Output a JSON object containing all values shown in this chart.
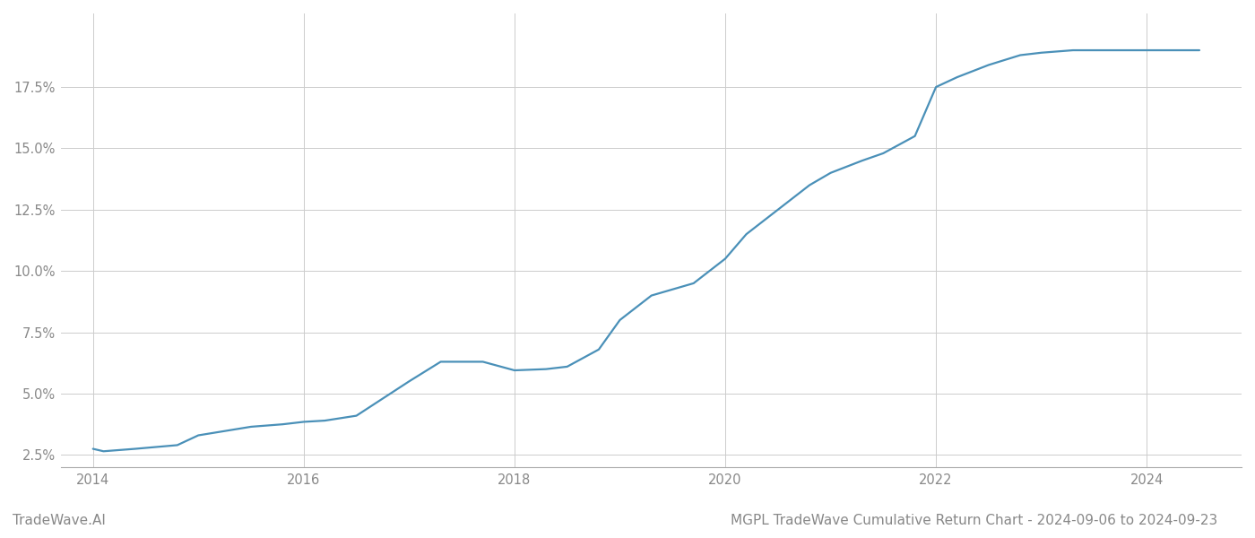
{
  "title": "MGPL TradeWave Cumulative Return Chart - 2024-09-06 to 2024-09-23",
  "watermark": "TradeWave.AI",
  "line_color": "#4a90b8",
  "background_color": "#ffffff",
  "grid_color": "#cccccc",
  "x_values": [
    2014.0,
    2014.1,
    2014.4,
    2014.8,
    2015.0,
    2015.5,
    2015.8,
    2016.0,
    2016.2,
    2016.5,
    2017.0,
    2017.3,
    2017.7,
    2018.0,
    2018.3,
    2018.5,
    2018.8,
    2019.0,
    2019.3,
    2019.7,
    2020.0,
    2020.2,
    2020.5,
    2020.8,
    2021.0,
    2021.3,
    2021.5,
    2021.8,
    2022.0,
    2022.2,
    2022.5,
    2022.8,
    2023.0,
    2023.3,
    2023.7,
    2024.0,
    2024.5
  ],
  "y_values": [
    2.75,
    2.65,
    2.75,
    2.9,
    3.3,
    3.65,
    3.75,
    3.85,
    3.9,
    4.1,
    5.5,
    6.3,
    6.3,
    5.95,
    6.0,
    6.1,
    6.8,
    8.0,
    9.0,
    9.5,
    10.5,
    11.5,
    12.5,
    13.5,
    14.0,
    14.5,
    14.8,
    15.5,
    17.5,
    17.9,
    18.4,
    18.8,
    18.9,
    19.0,
    19.0,
    19.0,
    19.0
  ],
  "xlim": [
    2013.7,
    2024.9
  ],
  "ylim": [
    2.0,
    20.5
  ],
  "yticks": [
    2.5,
    5.0,
    7.5,
    10.0,
    12.5,
    15.0,
    17.5
  ],
  "xticks": [
    2014,
    2016,
    2018,
    2020,
    2022,
    2024
  ],
  "line_width": 1.6,
  "title_fontsize": 11,
  "tick_fontsize": 10.5,
  "watermark_fontsize": 11
}
